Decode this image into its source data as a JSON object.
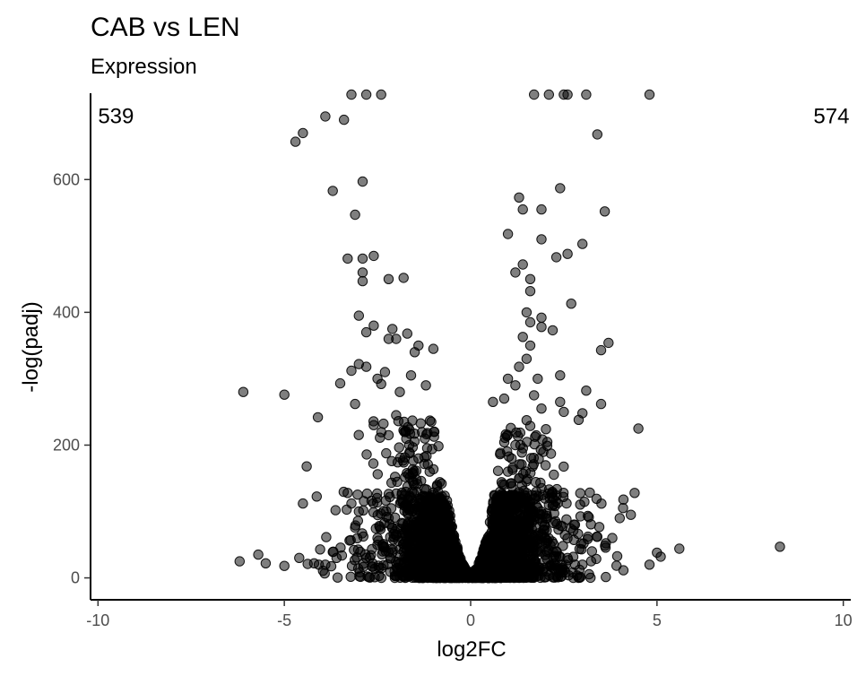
{
  "chart_data": {
    "type": "scatter",
    "title": "CAB vs LEN",
    "subtitle": "Expression",
    "xlabel": "log2FC",
    "ylabel": "-log(padj)",
    "xlim": [
      -10.2,
      10.2
    ],
    "ylim": [
      -33,
      730
    ],
    "xticks": [
      -10,
      -5,
      0,
      5,
      10
    ],
    "yticks": [
      0,
      200,
      400,
      600
    ],
    "grid": false,
    "legend": "none",
    "point_color": "#000000",
    "point_opacity": 0.5,
    "annotations": [
      {
        "text": "539",
        "x": -10,
        "y": 685
      },
      {
        "text": "574",
        "x": 9.2,
        "y": 685
      }
    ],
    "points": [
      [
        -3.2,
        728
      ],
      [
        -2.8,
        728
      ],
      [
        -2.4,
        728
      ],
      [
        1.7,
        728
      ],
      [
        2.1,
        728
      ],
      [
        2.5,
        728
      ],
      [
        2.6,
        728
      ],
      [
        3.1,
        728
      ],
      [
        4.8,
        728
      ],
      [
        -4.7,
        657
      ],
      [
        -4.5,
        670
      ],
      [
        -3.9,
        695
      ],
      [
        -3.4,
        690
      ],
      [
        3.4,
        668
      ],
      [
        -3.7,
        583
      ],
      [
        -2.9,
        597
      ],
      [
        2.4,
        587
      ],
      [
        -3.1,
        547
      ],
      [
        1.3,
        573
      ],
      [
        1.4,
        555
      ],
      [
        1.9,
        555
      ],
      [
        3.6,
        552
      ],
      [
        -3.3,
        481
      ],
      [
        -2.9,
        481
      ],
      [
        -2.6,
        485
      ],
      [
        1.0,
        518
      ],
      [
        1.9,
        510
      ],
      [
        2.6,
        488
      ],
      [
        3.0,
        503
      ],
      [
        2.3,
        483
      ],
      [
        1.2,
        460
      ],
      [
        1.4,
        472
      ],
      [
        -2.9,
        460
      ],
      [
        -2.9,
        447
      ],
      [
        -2.2,
        450
      ],
      [
        -1.8,
        452
      ],
      [
        1.6,
        450
      ],
      [
        1.6,
        432
      ],
      [
        2.7,
        413
      ],
      [
        -3.0,
        395
      ],
      [
        -2.6,
        380
      ],
      [
        -2.2,
        360
      ],
      [
        -2.1,
        375
      ],
      [
        -1.7,
        368
      ],
      [
        -1.5,
        340
      ],
      [
        -1.4,
        350
      ],
      [
        -1.0,
        345
      ],
      [
        -2.8,
        370
      ],
      [
        -2.0,
        360
      ],
      [
        1.5,
        400
      ],
      [
        1.6,
        385
      ],
      [
        1.9,
        392
      ],
      [
        2.2,
        373
      ],
      [
        3.7,
        354
      ],
      [
        3.5,
        343
      ],
      [
        1.4,
        363
      ],
      [
        1.6,
        350
      ],
      [
        1.9,
        378
      ],
      [
        -3.2,
        312
      ],
      [
        -3.0,
        322
      ],
      [
        -2.8,
        318
      ],
      [
        -2.5,
        300
      ],
      [
        -2.4,
        292
      ],
      [
        -1.9,
        280
      ],
      [
        -1.6,
        305
      ],
      [
        -1.2,
        290
      ],
      [
        -3.5,
        293
      ],
      [
        -2.3,
        310
      ],
      [
        1.0,
        300
      ],
      [
        1.2,
        290
      ],
      [
        1.5,
        330
      ],
      [
        1.8,
        300
      ],
      [
        2.4,
        305
      ],
      [
        3.1,
        282
      ],
      [
        3.5,
        262
      ],
      [
        1.3,
        318
      ],
      [
        1.7,
        275
      ],
      [
        -6.1,
        280
      ],
      [
        -5.0,
        276
      ],
      [
        -4.1,
        242
      ],
      [
        -4.4,
        168
      ],
      [
        -4.5,
        112
      ],
      [
        -3.1,
        262
      ],
      [
        -2.6,
        230
      ],
      [
        -2.2,
        215
      ],
      [
        -2.0,
        245
      ],
      [
        0.6,
        265
      ],
      [
        0.9,
        270
      ],
      [
        2.4,
        265
      ],
      [
        2.9,
        238
      ],
      [
        3.0,
        248
      ],
      [
        4.5,
        225
      ],
      [
        2.5,
        250
      ],
      [
        1.9,
        255
      ],
      [
        -6.2,
        25
      ],
      [
        -5.7,
        35
      ],
      [
        -5.5,
        22
      ],
      [
        -5.0,
        18
      ],
      [
        -4.6,
        30
      ],
      [
        -4.2,
        22
      ],
      [
        -3.9,
        20
      ],
      [
        -3.6,
        30
      ],
      [
        -3.3,
        128
      ],
      [
        -3.2,
        112
      ],
      [
        -3.0,
        100
      ],
      [
        4.1,
        118
      ],
      [
        4.4,
        128
      ],
      [
        5.0,
        38
      ],
      [
        5.1,
        32
      ],
      [
        5.6,
        44
      ],
      [
        8.3,
        47
      ],
      [
        4.8,
        20
      ],
      [
        4.0,
        90
      ],
      [
        4.3,
        95
      ],
      [
        3.8,
        60
      ],
      [
        -1.4,
        180
      ],
      [
        -1.1,
        160
      ],
      [
        -0.9,
        140
      ],
      [
        -0.8,
        120
      ],
      [
        -0.7,
        100
      ],
      [
        -0.6,
        80
      ],
      [
        -0.5,
        60
      ],
      [
        -0.4,
        40
      ],
      [
        -0.3,
        20
      ],
      [
        -0.2,
        10
      ],
      [
        -1.6,
        120
      ],
      [
        -1.3,
        90
      ],
      [
        -1.1,
        70
      ],
      [
        -0.9,
        50
      ],
      [
        -2.2,
        90
      ],
      [
        -2.5,
        60
      ],
      [
        -1.8,
        40
      ],
      [
        -2.8,
        30
      ],
      [
        -1.5,
        25
      ],
      [
        -1.2,
        15
      ],
      [
        0.3,
        20
      ],
      [
        0.4,
        40
      ],
      [
        0.5,
        60
      ],
      [
        0.6,
        80
      ],
      [
        0.7,
        100
      ],
      [
        0.8,
        120
      ],
      [
        0.9,
        140
      ],
      [
        1.0,
        160
      ],
      [
        1.1,
        180
      ],
      [
        1.2,
        200
      ],
      [
        1.3,
        150
      ],
      [
        1.5,
        120
      ],
      [
        1.8,
        90
      ],
      [
        2.0,
        60
      ],
      [
        2.3,
        40
      ],
      [
        2.6,
        30
      ],
      [
        3.0,
        20
      ],
      [
        1.6,
        50
      ],
      [
        2.1,
        110
      ],
      [
        2.8,
        80
      ],
      [
        -0.1,
        3
      ],
      [
        0.1,
        3
      ],
      [
        -0.05,
        1
      ],
      [
        0.05,
        1
      ],
      [
        0.0,
        2
      ],
      [
        -0.15,
        6
      ],
      [
        0.15,
        6
      ],
      [
        -0.25,
        12
      ],
      [
        0.25,
        12
      ],
      [
        0.35,
        28
      ]
    ],
    "dense_regions": [
      {
        "cx": -0.95,
        "sd_x": 0.38,
        "ymax": 125,
        "n": 900,
        "sign": -1
      },
      {
        "cx": 0.95,
        "sd_x": 0.38,
        "ymax": 125,
        "n": 900,
        "sign": 1
      },
      {
        "cx": -0.55,
        "sd_x": 0.28,
        "ymax": 55,
        "n": 600,
        "sign": -1
      },
      {
        "cx": 0.55,
        "sd_x": 0.28,
        "ymax": 55,
        "n": 600,
        "sign": 1
      },
      {
        "cx": -1.4,
        "sd_x": 0.6,
        "ymax": 240,
        "n": 260,
        "sign": -1
      },
      {
        "cx": 1.4,
        "sd_x": 0.6,
        "ymax": 240,
        "n": 260,
        "sign": 1
      },
      {
        "cx": -2.3,
        "sd_x": 0.8,
        "ymax": 130,
        "n": 130,
        "sign": -1
      },
      {
        "cx": 2.3,
        "sd_x": 0.8,
        "ymax": 130,
        "n": 130,
        "sign": 1
      }
    ]
  }
}
